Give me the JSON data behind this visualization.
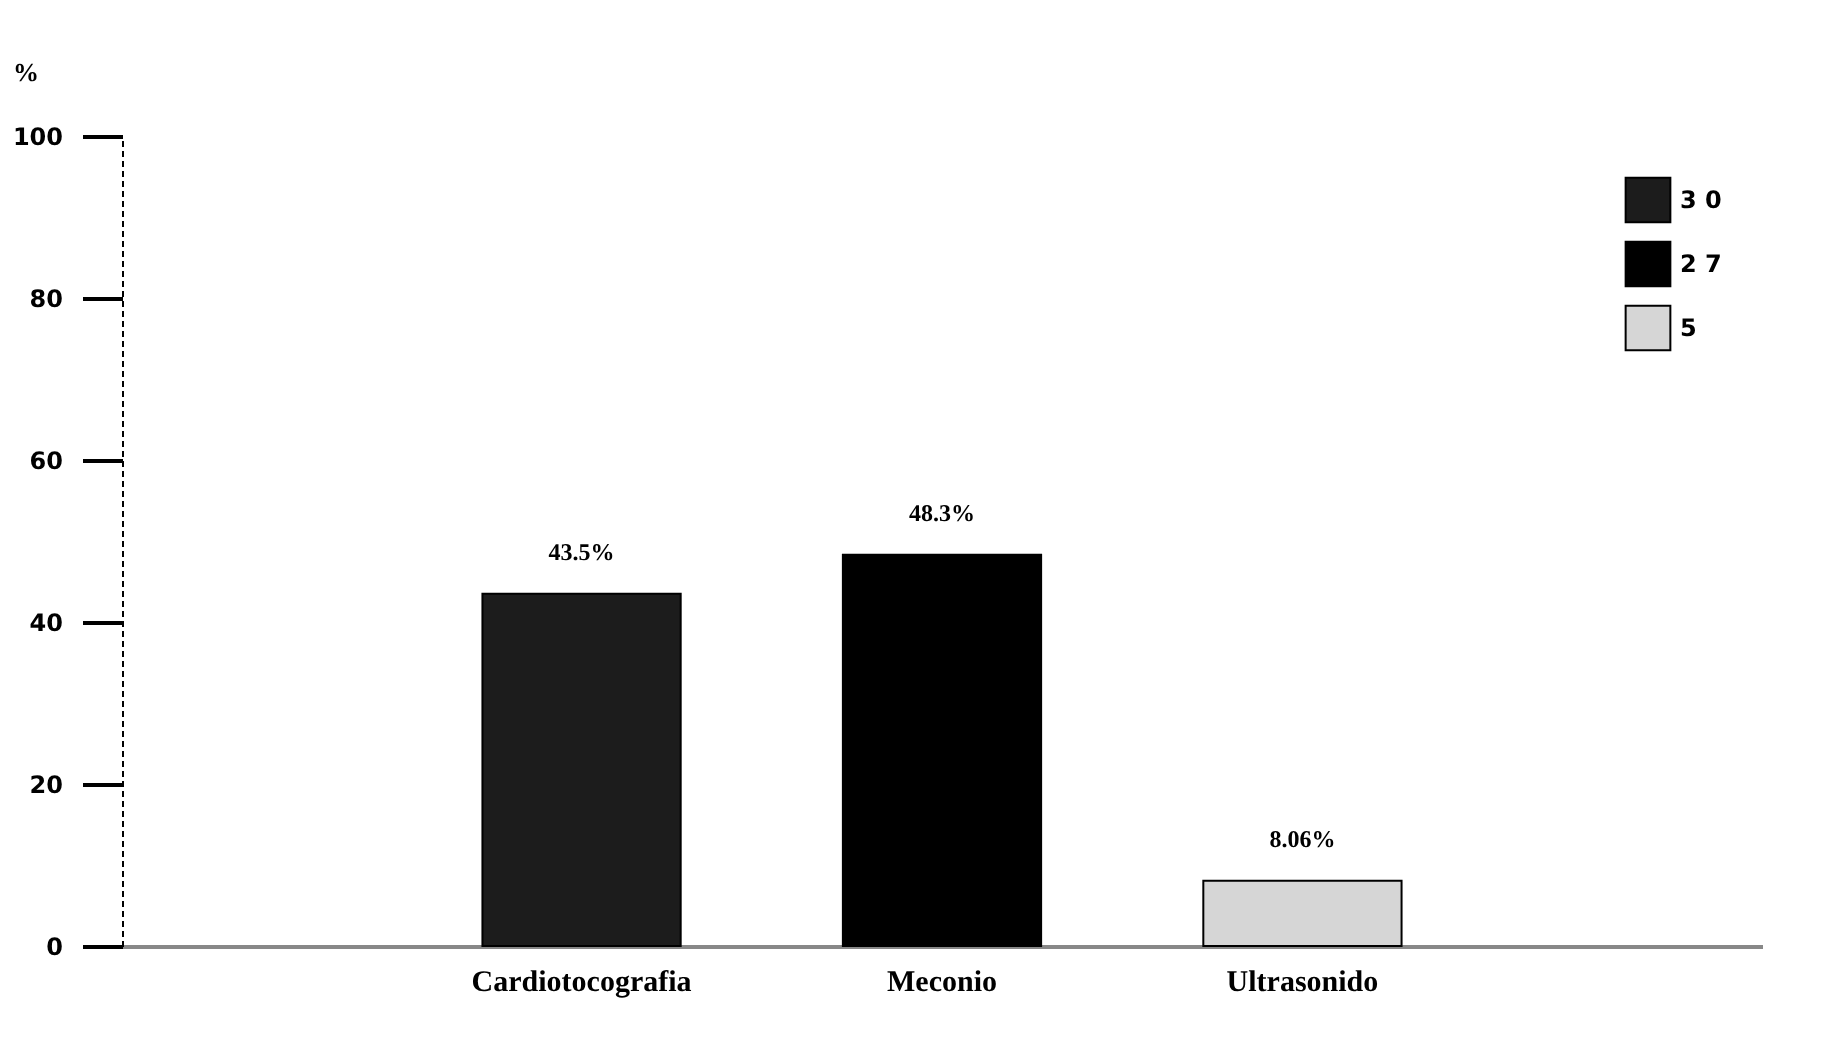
{
  "chart_data": {
    "type": "bar",
    "ylabel": "%",
    "categories": [
      "Cardiotocografia",
      "Meconio",
      "Ultrasonido"
    ],
    "series": [
      {
        "name": "3 0",
        "color": "#1c1c1c",
        "values": [
          43.5,
          null,
          null
        ]
      },
      {
        "name": "2 7",
        "color": "#000000",
        "values": [
          null,
          48.3,
          null
        ]
      },
      {
        "name": "5",
        "color": "#d6d6d6",
        "values": [
          null,
          null,
          8.06
        ]
      }
    ],
    "value_labels": [
      "43.5%",
      "48.3%",
      "8.06%"
    ],
    "ylim": [
      0,
      100
    ],
    "yticks": [
      0,
      20,
      40,
      60,
      80,
      100
    ],
    "grid": false,
    "legend": "top right"
  }
}
